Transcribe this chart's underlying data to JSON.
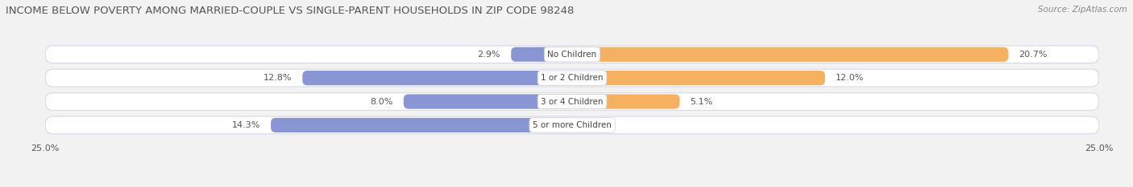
{
  "title": "INCOME BELOW POVERTY AMONG MARRIED-COUPLE VS SINGLE-PARENT HOUSEHOLDS IN ZIP CODE 98248",
  "source": "Source: ZipAtlas.com",
  "categories": [
    "No Children",
    "1 or 2 Children",
    "3 or 4 Children",
    "5 or more Children"
  ],
  "married_values": [
    2.9,
    12.8,
    8.0,
    14.3
  ],
  "single_values": [
    20.7,
    12.0,
    5.1,
    0.0
  ],
  "married_color": "#8a96d4",
  "single_color": "#f5b060",
  "axis_limit": 25.0,
  "bar_height": 0.62,
  "bg_color": "#f2f2f2",
  "row_bg_color": "#ffffff",
  "row_outline_color": "#d8d8e8",
  "title_fontsize": 9.5,
  "source_fontsize": 7.5,
  "label_fontsize": 8,
  "category_fontsize": 7.5,
  "axis_label_fontsize": 8,
  "legend_fontsize": 8.5
}
